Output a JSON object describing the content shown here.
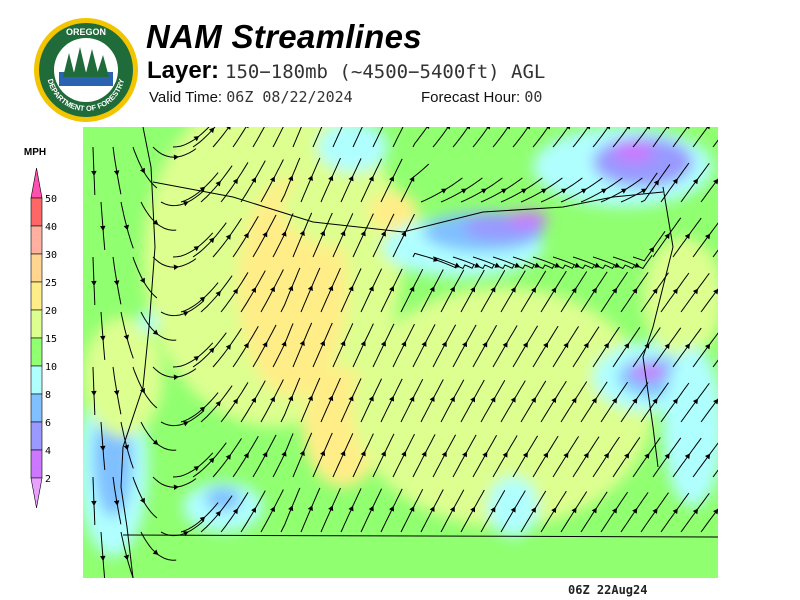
{
  "logo": {
    "text": "OREGON DEPARTMENT OF FORESTRY"
  },
  "header": {
    "title": "NAM Streamlines",
    "layer_label": "Layer:",
    "layer_value": "150−180mb (~4500−5400ft) AGL",
    "valid_label": "Valid Time:",
    "valid_value": "06Z 08/22/2024",
    "forecast_label": "Forecast Hour:",
    "forecast_value": "00"
  },
  "legend": {
    "unit": "MPH",
    "levels": [
      "50",
      "40",
      "30",
      "25",
      "20",
      "15",
      "10",
      "8",
      "6",
      "4",
      "2"
    ],
    "colors": {
      "above_50": "#ff50b0",
      "40-50": "#ff6666",
      "30-40": "#ffb0a0",
      "25-30": "#ffd590",
      "20-25": "#ffee88",
      "15-20": "#ddff90",
      "10-15": "#90ff70",
      "8-10": "#b0ffff",
      "6-8": "#80c0ff",
      "4-6": "#9999ff",
      "2-4": "#cc77ff",
      "below_2": "#e8a0ff"
    }
  },
  "footer": {
    "stamp": "06Z 22Aug24"
  }
}
